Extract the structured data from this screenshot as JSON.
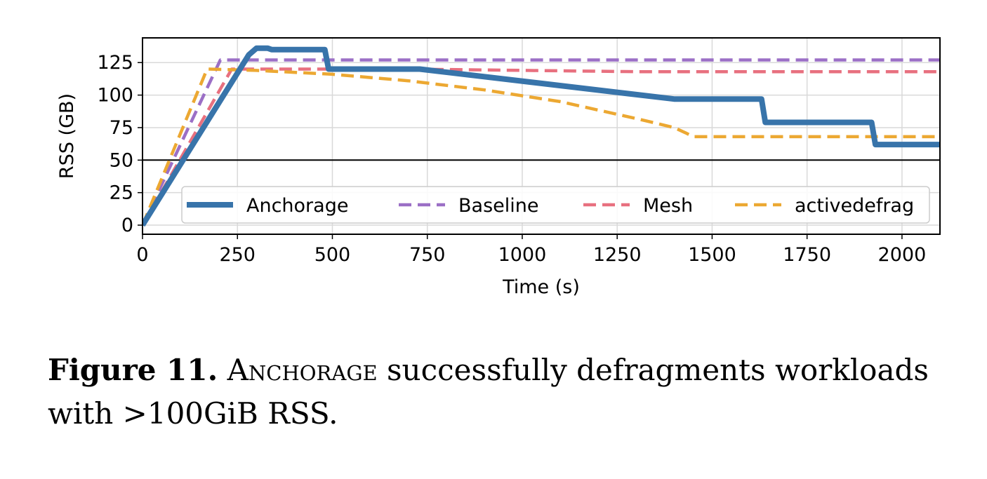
{
  "chart_data": {
    "type": "line",
    "xlabel": "Time (s)",
    "ylabel": "RSS (GB)",
    "xlim": [
      0,
      2100
    ],
    "ylim": [
      -7,
      144
    ],
    "xticks": [
      0,
      250,
      500,
      750,
      1000,
      1250,
      1500,
      1750,
      2000
    ],
    "yticks": [
      0,
      25,
      50,
      75,
      100,
      125
    ],
    "grid": true,
    "reference_line_y": 50,
    "legend_position": "lower-center",
    "series": [
      {
        "name": "Anchorage",
        "color": "#3874aa",
        "style": "solid",
        "x": [
          0,
          280,
          300,
          330,
          340,
          480,
          490,
          500,
          730,
          1400,
          1630,
          1640,
          1920,
          1930,
          2100
        ],
        "y": [
          0,
          131,
          136,
          136,
          135,
          135,
          120,
          120,
          120,
          97,
          97,
          79,
          79,
          62,
          62
        ]
      },
      {
        "name": "Baseline",
        "color": "#9b6fc6",
        "style": "dashed",
        "x": [
          0,
          205,
          2100
        ],
        "y": [
          0,
          127,
          127
        ]
      },
      {
        "name": "Mesh",
        "color": "#e8707f",
        "style": "dashed",
        "x": [
          0,
          235,
          700,
          1300,
          2100
        ],
        "y": [
          0,
          120,
          120,
          118,
          118
        ]
      },
      {
        "name": "activedefrag",
        "color": "#eca832",
        "style": "dashed",
        "x": [
          0,
          170,
          300,
          500,
          700,
          900,
          1100,
          1300,
          1400,
          1430,
          1450,
          2100
        ],
        "y": [
          0,
          120,
          119,
          116,
          111,
          104,
          95,
          82,
          75,
          71,
          68,
          68
        ]
      }
    ]
  },
  "caption": {
    "label": "Figure 11.",
    "name": "Anchorage",
    "text_rest": " successfully defragments workloads with >100GiB RSS."
  }
}
